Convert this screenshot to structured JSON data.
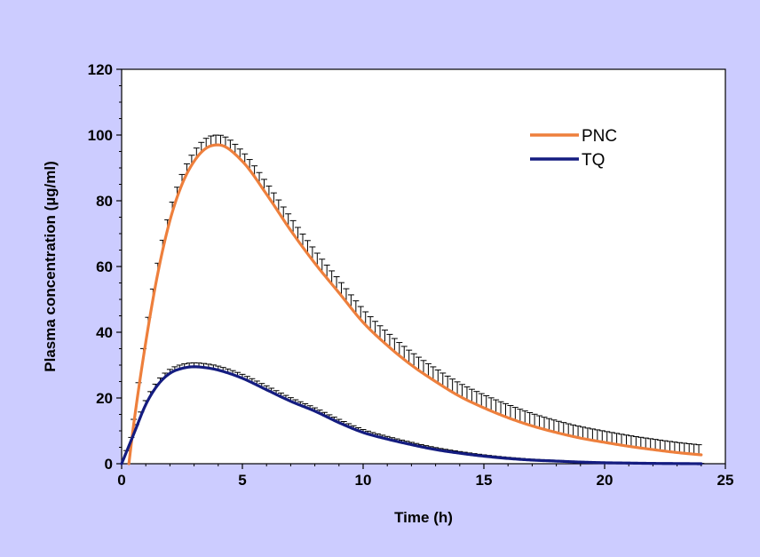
{
  "chart_data": {
    "type": "line",
    "title": "",
    "xlabel": "Time (h)",
    "ylabel": "Plasma concentration (µg/ml)",
    "xlim": [
      0,
      25
    ],
    "ylim": [
      0,
      120
    ],
    "xticks": [
      "0",
      "5",
      "10",
      "15",
      "20",
      "25"
    ],
    "yticks": [
      "0",
      "20",
      "40",
      "60",
      "80",
      "100",
      "120"
    ],
    "grid": false,
    "legend": "top-right",
    "colors": {
      "background": "#ccccff",
      "plot": "#ffffff",
      "PNC": "#ee7f3c",
      "TQ": "#141c80",
      "error_bars": "#000000"
    },
    "series": [
      {
        "name": "PNC",
        "error_bars": "upper",
        "x": [
          0.3,
          0.5,
          1,
          1.5,
          2,
          2.5,
          3,
          3.5,
          4,
          5,
          6,
          7,
          8,
          9,
          10,
          11,
          12,
          13,
          14,
          15,
          16,
          17,
          18,
          19,
          20,
          21,
          22,
          23,
          24
        ],
        "y": [
          0,
          12,
          37,
          58,
          74,
          85,
          92,
          96,
          97,
          92,
          82,
          71,
          61,
          52,
          43,
          36,
          30,
          25,
          20.5,
          17,
          14,
          11.5,
          9.5,
          7.8,
          6.5,
          5.3,
          4.3,
          3.4,
          2.7
        ],
        "error": [
          0,
          1.5,
          3,
          3,
          3,
          3,
          3,
          3,
          3,
          3,
          3.5,
          4,
          4,
          4,
          4,
          4,
          4,
          4,
          4,
          4,
          4,
          3.8,
          3.6,
          3.5,
          3.4,
          3.3,
          3.2,
          3.1,
          3
        ]
      },
      {
        "name": "TQ",
        "error_bars": "upper",
        "x": [
          0,
          0.5,
          1,
          1.5,
          2,
          2.5,
          3,
          3.5,
          4,
          5,
          6,
          7,
          8,
          9,
          10,
          11,
          12,
          13,
          14,
          15,
          16,
          17,
          18,
          19,
          20,
          21,
          22,
          23,
          24
        ],
        "y": [
          0,
          9,
          18,
          24,
          27.5,
          29,
          29.5,
          29.2,
          28.5,
          26,
          22.5,
          19,
          16,
          12.5,
          9.5,
          7.5,
          5.8,
          4.3,
          3.2,
          2.3,
          1.6,
          1.1,
          0.8,
          0.5,
          0.3,
          0.2,
          0.1,
          0.05,
          0
        ],
        "error": [
          0,
          1,
          1.2,
          1.2,
          1.2,
          1.2,
          1.2,
          1.2,
          1.2,
          1.2,
          1.2,
          1.1,
          1,
          1,
          0.9,
          0.8,
          0.7,
          0.6,
          0.5,
          0.4,
          0.35,
          0.3,
          0.25,
          0.2,
          0.2,
          0.15,
          0.1,
          0.1,
          0.1
        ]
      }
    ]
  }
}
